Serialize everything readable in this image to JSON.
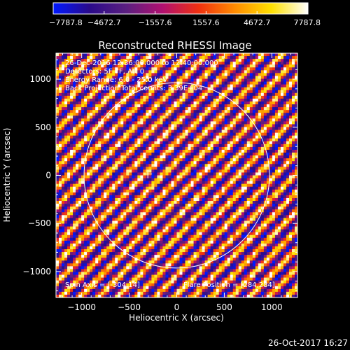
{
  "chart_data": {
    "type": "heatmap",
    "title": "Reconstructed RHESSI Image",
    "xlabel": "Heliocentric X (arcsec)",
    "ylabel": "Heliocentric Y (arcsec)",
    "xlim": [
      -1270,
      1270
    ],
    "ylim": [
      -1270,
      1270
    ],
    "x_ticks": [
      -1000,
      -500,
      0,
      500,
      1000
    ],
    "y_ticks": [
      -1000,
      -500,
      0,
      500,
      1000
    ],
    "x_tick_labels": [
      "−1000",
      "−500",
      "0",
      "500",
      "1000"
    ],
    "y_tick_labels": [
      "−1000",
      "−500",
      "0",
      "500",
      "1000"
    ],
    "colorbar": {
      "range": [
        -7787.8,
        7787.8
      ],
      "ticks": [
        -7787.8,
        -4672.7,
        -1557.6,
        1557.6,
        4672.7,
        7787.8
      ],
      "tick_labels": [
        "−7787.8",
        "−4672.7",
        "−1557.6",
        "1557.6",
        "4672.7",
        "7787.8"
      ],
      "colors": [
        "#0018ff",
        "#2a0a8a",
        "#5a1f80",
        "#b01070",
        "#f03010",
        "#ff8c00",
        "#ffe000",
        "#ffffff"
      ]
    },
    "annotations": [
      "26-Dec-2016 12:36:00.000 to 12:40:00.000",
      "Detectors: 5F 7F, Att 0",
      "Energy Range: 6.0 - 25.0 keV",
      "Back Projection    Total counts: 3.39E+04"
    ],
    "spin_axis_label": "Spin Axis = [-304,14]",
    "spin_axis": [
      -304,
      14
    ],
    "flare_position_label": "Flare Position = [284,284]",
    "flare_position": [
      284,
      284
    ],
    "solar_limb_radius_arcsec": 975,
    "stripe_pattern": {
      "angle_deg": 45,
      "period_arcsec": 140
    }
  },
  "timestamp": "26-Oct-2017 16:27",
  "colors": {
    "background": "#000000",
    "foreground": "#ffffff"
  }
}
